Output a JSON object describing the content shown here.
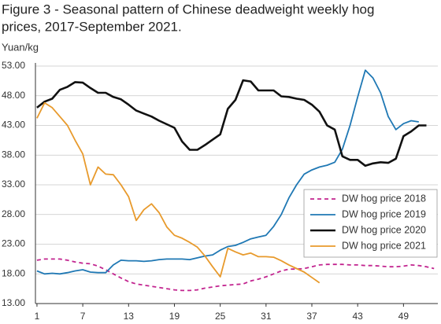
{
  "chart_data": {
    "type": "line",
    "title": [
      "Figure 3 - Seasonal pattern of Chinese deadweight weekly hog",
      "prices, 2017-September 2021."
    ],
    "y_label": "Yuan/kg",
    "x": [
      1,
      2,
      3,
      4,
      5,
      6,
      7,
      8,
      9,
      10,
      11,
      12,
      13,
      14,
      15,
      16,
      17,
      18,
      19,
      20,
      21,
      22,
      23,
      24,
      25,
      26,
      27,
      28,
      29,
      30,
      31,
      32,
      33,
      34,
      35,
      36,
      37,
      38,
      39,
      40,
      41,
      42,
      43,
      44,
      45,
      46,
      47,
      48,
      49,
      50,
      51,
      52,
      53
    ],
    "xlim": [
      0.8,
      53.5
    ],
    "xticks": [
      1,
      7,
      13,
      19,
      25,
      31,
      37,
      43,
      49
    ],
    "ylim": [
      13,
      53
    ],
    "yticks": [
      {
        "value": 13,
        "label": "13.00"
      },
      {
        "value": 18,
        "label": "18.00"
      },
      {
        "value": 23,
        "label": "23.00"
      },
      {
        "value": 28,
        "label": "28.00"
      },
      {
        "value": 33,
        "label": "33.00"
      },
      {
        "value": 38,
        "label": "38.00"
      },
      {
        "value": 43,
        "label": "43.00"
      },
      {
        "value": 48,
        "label": "48.00"
      },
      {
        "value": 53,
        "label": "53.00"
      }
    ],
    "grid": true,
    "legend": "lower right",
    "series": [
      {
        "name": "DW hog price 2018",
        "color": "#c2248f",
        "dash": true,
        "values": [
          20.3,
          20.5,
          20.5,
          20.5,
          20.3,
          20,
          19.8,
          19.7,
          19.3,
          18.7,
          18,
          17.3,
          16.7,
          16.3,
          16.1,
          15.9,
          15.7,
          15.5,
          15.3,
          15.2,
          15.2,
          15.3,
          15.6,
          15.8,
          16,
          16.1,
          16.2,
          16.3,
          16.8,
          17.1,
          17.5,
          18,
          18.5,
          18.8,
          18.8,
          18.9,
          19.2,
          19.5,
          19.6,
          19.6,
          19.6,
          19.5,
          19.5,
          19.4,
          19.4,
          19.3,
          19.2,
          19.2,
          19.3,
          19.5,
          19.4,
          19.2,
          18.9
        ]
      },
      {
        "name": "DW hog price 2019",
        "color": "#1f78b4",
        "dash": false,
        "values": [
          18.5,
          18,
          18.1,
          18,
          18.2,
          18.5,
          18.7,
          18.3,
          18.2,
          18.2,
          19.5,
          20.3,
          20.2,
          20.2,
          20.1,
          20.2,
          20.4,
          20.5,
          20.5,
          20.5,
          20.4,
          20.7,
          21,
          21.2,
          22,
          22.6,
          22.8,
          23.3,
          23.9,
          24.2,
          24.5,
          26,
          28,
          30.8,
          33,
          34.8,
          35.5,
          36,
          36.3,
          36.8,
          39,
          43,
          47.8,
          52.3,
          51,
          48.5,
          44.5,
          42.3,
          43.3,
          43.8,
          43.6,
          null,
          null
        ]
      },
      {
        "name": "DW hog price 2020",
        "color": "#111111",
        "dash": false,
        "values": [
          46,
          47,
          47.5,
          49,
          49.5,
          50.3,
          50.2,
          49.3,
          48.5,
          48.5,
          47.8,
          47.4,
          46.5,
          45.5,
          45,
          44.5,
          43.8,
          43.2,
          42.6,
          40.3,
          38.9,
          38.9,
          39.7,
          40.6,
          41.5,
          45.8,
          47.3,
          50.6,
          50.4,
          48.9,
          48.9,
          48.9,
          47.9,
          47.8,
          47.5,
          47.3,
          46.5,
          45.3,
          43,
          42.3,
          37.8,
          37.2,
          37.2,
          36.2,
          36.6,
          36.8,
          36.7,
          37.4,
          41.2,
          42,
          43,
          43,
          null
        ]
      },
      {
        "name": "DW hog price 2021",
        "color": "#e89a2c",
        "dash": false,
        "values": [
          44.2,
          46.8,
          46,
          44.5,
          43,
          40.5,
          38.2,
          33,
          36,
          34.8,
          34.7,
          33,
          31,
          27,
          28.8,
          29.8,
          28.3,
          25.9,
          24.5,
          24,
          23.3,
          22.5,
          21,
          19.2,
          17.5,
          22.3,
          21.7,
          21.2,
          21.5,
          20.9,
          20.9,
          20.8,
          20.2,
          19.5,
          18.9,
          18.3,
          17.4,
          16.5,
          null,
          null,
          null,
          null,
          null,
          null,
          null,
          null,
          null,
          null,
          null,
          null,
          null,
          null,
          null
        ]
      }
    ]
  }
}
